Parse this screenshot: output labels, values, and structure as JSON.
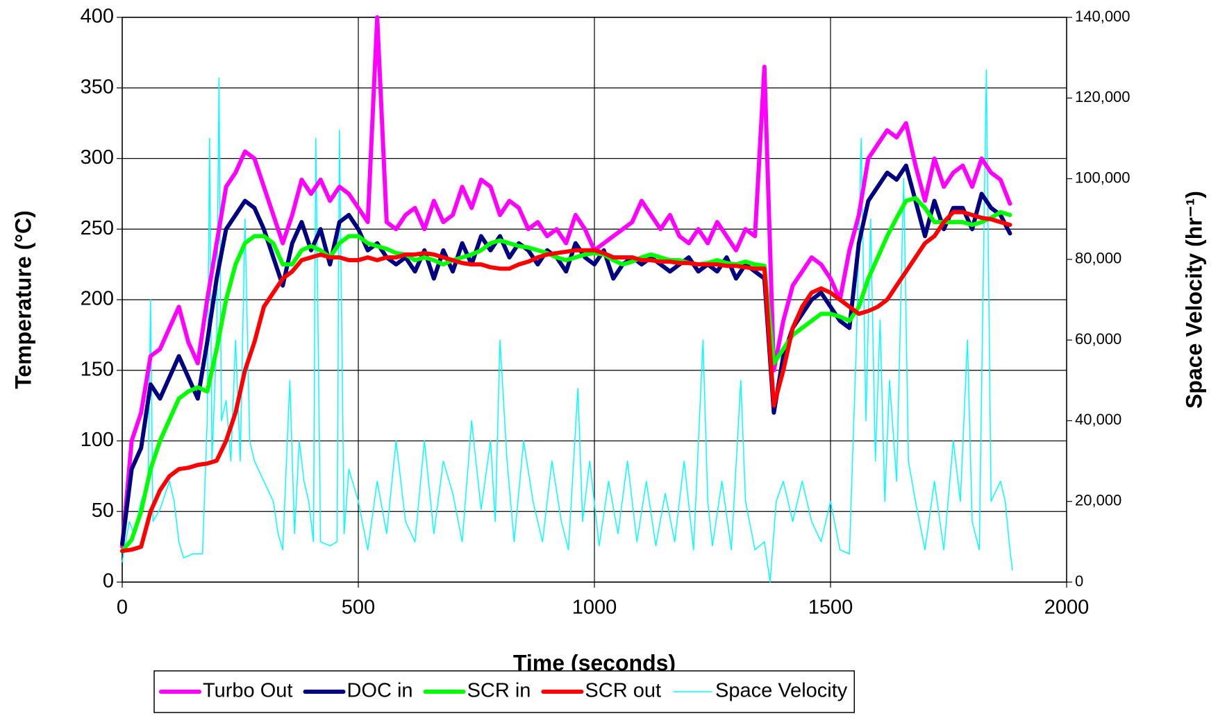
{
  "chart_data": {
    "type": "line",
    "xlabel": "Time (seconds)",
    "ylabel": "Temperature (°C)",
    "y2label": "Space Velocity (hr⁻¹)",
    "xlim": [
      0,
      2000
    ],
    "xticks": [
      0,
      500,
      1000,
      1500,
      2000
    ],
    "ylim": [
      0,
      400
    ],
    "yticks": [
      0,
      50,
      100,
      150,
      200,
      250,
      300,
      350,
      400
    ],
    "y2lim": [
      0,
      140000
    ],
    "y2ticks": [
      0,
      {
        "value": 20000,
        "label": "20,000"
      },
      {
        "value": 40000,
        "label": "40,000"
      },
      {
        "value": 60000,
        "label": "60,000"
      },
      {
        "value": 80000,
        "label": "80,000"
      },
      {
        "value": 100000,
        "label": "100,000"
      },
      {
        "value": 120000,
        "label": "120,000"
      },
      {
        "value": 140000,
        "label": "140,000"
      }
    ],
    "grid": true,
    "legend": "bottom",
    "x": [
      0,
      20,
      40,
      60,
      80,
      100,
      120,
      140,
      160,
      180,
      200,
      220,
      240,
      260,
      280,
      300,
      320,
      340,
      360,
      380,
      400,
      420,
      440,
      460,
      480,
      500,
      520,
      540,
      560,
      580,
      600,
      620,
      640,
      660,
      680,
      700,
      720,
      740,
      760,
      780,
      800,
      820,
      840,
      860,
      880,
      900,
      920,
      940,
      960,
      980,
      1000,
      1020,
      1040,
      1060,
      1080,
      1100,
      1120,
      1140,
      1160,
      1180,
      1200,
      1220,
      1240,
      1260,
      1280,
      1300,
      1320,
      1340,
      1360,
      1380,
      1400,
      1420,
      1440,
      1460,
      1480,
      1500,
      1520,
      1540,
      1560,
      1580,
      1600,
      1620,
      1640,
      1660,
      1680,
      1700,
      1720,
      1740,
      1760,
      1780,
      1800,
      1820,
      1840,
      1860,
      1880
    ],
    "series": [
      {
        "name": "Turbo Out",
        "color": "#ff00ff",
        "width": 6,
        "values": [
          25,
          100,
          120,
          160,
          165,
          180,
          195,
          170,
          155,
          200,
          240,
          280,
          290,
          305,
          300,
          280,
          260,
          240,
          260,
          285,
          275,
          285,
          270,
          280,
          275,
          265,
          255,
          400,
          255,
          250,
          260,
          265,
          250,
          270,
          255,
          260,
          280,
          265,
          285,
          280,
          260,
          270,
          265,
          250,
          255,
          245,
          250,
          240,
          260,
          250,
          235,
          240,
          245,
          250,
          255,
          270,
          260,
          250,
          260,
          245,
          240,
          250,
          240,
          255,
          245,
          235,
          250,
          245,
          365,
          150,
          185,
          210,
          220,
          230,
          225,
          215,
          200,
          235,
          260,
          300,
          310,
          320,
          315,
          325,
          295,
          270,
          300,
          280,
          290,
          295,
          280,
          300,
          290,
          285,
          268
        ]
      },
      {
        "name": "DOC in",
        "color": "#000080",
        "width": 6,
        "values": [
          27,
          80,
          95,
          140,
          130,
          145,
          160,
          145,
          130,
          170,
          215,
          250,
          260,
          270,
          265,
          250,
          230,
          210,
          240,
          255,
          235,
          250,
          225,
          255,
          260,
          250,
          235,
          240,
          230,
          225,
          230,
          220,
          235,
          215,
          235,
          220,
          240,
          225,
          245,
          235,
          245,
          230,
          240,
          235,
          225,
          235,
          230,
          220,
          240,
          230,
          225,
          235,
          215,
          225,
          230,
          225,
          230,
          225,
          220,
          225,
          230,
          220,
          225,
          220,
          230,
          215,
          225,
          220,
          215,
          120,
          160,
          180,
          190,
          200,
          205,
          195,
          185,
          180,
          240,
          270,
          280,
          290,
          285,
          295,
          270,
          245,
          270,
          250,
          265,
          265,
          250,
          275,
          265,
          260,
          247
        ]
      },
      {
        "name": "SCR in",
        "color": "#00ff00",
        "width": 6,
        "values": [
          22,
          30,
          50,
          80,
          100,
          115,
          130,
          135,
          138,
          135,
          165,
          200,
          225,
          240,
          245,
          245,
          240,
          225,
          225,
          235,
          238,
          235,
          230,
          240,
          245,
          245,
          240,
          238,
          236,
          233,
          232,
          228,
          230,
          228,
          225,
          228,
          230,
          232,
          235,
          240,
          242,
          240,
          238,
          237,
          235,
          233,
          230,
          228,
          230,
          232,
          233,
          232,
          228,
          225,
          227,
          230,
          232,
          230,
          228,
          228,
          226,
          225,
          226,
          228,
          226,
          225,
          227,
          225,
          224,
          155,
          165,
          175,
          180,
          185,
          190,
          190,
          188,
          185,
          195,
          215,
          230,
          245,
          258,
          270,
          272,
          265,
          255,
          255,
          255,
          255,
          253,
          255,
          258,
          262,
          260
        ]
      },
      {
        "name": "SCR out",
        "color": "#ff0000",
        "width": 6,
        "values": [
          22,
          23,
          25,
          50,
          65,
          75,
          80,
          81,
          83,
          84,
          86,
          100,
          120,
          150,
          170,
          195,
          205,
          215,
          220,
          228,
          230,
          232,
          230,
          230,
          228,
          228,
          230,
          228,
          230,
          230,
          232,
          232,
          233,
          232,
          230,
          228,
          226,
          225,
          225,
          223,
          222,
          222,
          225,
          227,
          230,
          232,
          233,
          234,
          235,
          235,
          235,
          233,
          230,
          230,
          230,
          228,
          228,
          227,
          227,
          226,
          226,
          225,
          225,
          225,
          224,
          224,
          223,
          222,
          222,
          125,
          150,
          180,
          195,
          205,
          208,
          205,
          200,
          195,
          190,
          192,
          195,
          200,
          210,
          220,
          230,
          240,
          245,
          255,
          262,
          262,
          260,
          258,
          257,
          255,
          253
        ]
      },
      {
        "name": "Space Velocity",
        "color": "#00ffff",
        "width": 1.5,
        "axis": "y2",
        "x": [
          0,
          15,
          25,
          40,
          55,
          60,
          65,
          80,
          100,
          110,
          120,
          130,
          150,
          170,
          180,
          185,
          190,
          200,
          205,
          210,
          220,
          230,
          240,
          250,
          260,
          270,
          280,
          300,
          320,
          330,
          340,
          355,
          365,
          375,
          385,
          395,
          405,
          410,
          420,
          440,
          455,
          460,
          470,
          480,
          500,
          520,
          540,
          560,
          580,
          600,
          620,
          640,
          660,
          680,
          700,
          720,
          740,
          760,
          780,
          790,
          800,
          815,
          830,
          850,
          870,
          890,
          910,
          930,
          945,
          965,
          975,
          990,
          1010,
          1030,
          1050,
          1070,
          1090,
          1110,
          1130,
          1150,
          1170,
          1190,
          1210,
          1230,
          1240,
          1250,
          1270,
          1290,
          1310,
          1320,
          1340,
          1360,
          1372,
          1385,
          1400,
          1420,
          1440,
          1460,
          1480,
          1500,
          1520,
          1540,
          1555,
          1565,
          1575,
          1585,
          1595,
          1605,
          1615,
          1625,
          1640,
          1655,
          1665,
          1680,
          1700,
          1720,
          1740,
          1760,
          1775,
          1790,
          1800,
          1815,
          1830,
          1840,
          1860,
          1870,
          1880,
          1885
        ],
        "values": [
          5000,
          15000,
          12000,
          20000,
          25000,
          70000,
          15000,
          18000,
          25000,
          20000,
          10000,
          6000,
          7000,
          7000,
          40000,
          110000,
          30000,
          60000,
          125000,
          40000,
          45000,
          30000,
          60000,
          30000,
          90000,
          35000,
          30000,
          25000,
          20000,
          12000,
          8000,
          50000,
          12000,
          35000,
          25000,
          20000,
          10000,
          110000,
          10000,
          9000,
          10000,
          112000,
          12000,
          28000,
          20000,
          8000,
          25000,
          12000,
          35000,
          15000,
          10000,
          35000,
          12000,
          30000,
          22000,
          10000,
          40000,
          18000,
          35000,
          15000,
          60000,
          30000,
          10000,
          35000,
          20000,
          10000,
          30000,
          15000,
          8000,
          48000,
          15000,
          30000,
          9000,
          25000,
          12000,
          30000,
          10000,
          25000,
          9000,
          22000,
          10000,
          30000,
          8000,
          60000,
          20000,
          9000,
          25000,
          8000,
          50000,
          20000,
          8000,
          10000,
          0,
          20000,
          25000,
          15000,
          25000,
          15000,
          10000,
          20000,
          8000,
          7000,
          60000,
          110000,
          40000,
          90000,
          30000,
          65000,
          20000,
          50000,
          25000,
          100000,
          30000,
          20000,
          8000,
          25000,
          8000,
          35000,
          20000,
          60000,
          15000,
          8000,
          127000,
          20000,
          25000,
          20000,
          8000,
          3000
        ]
      }
    ]
  }
}
